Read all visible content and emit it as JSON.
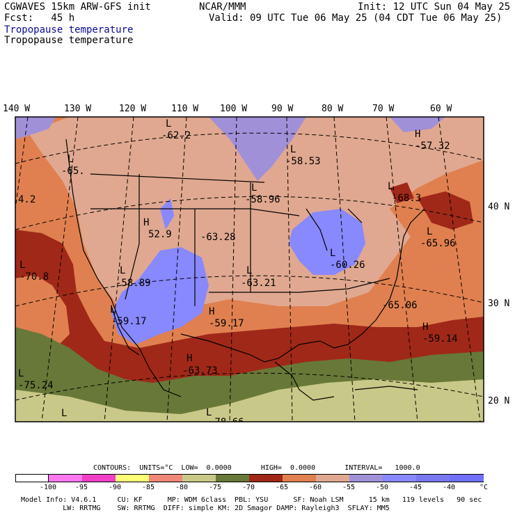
{
  "header": {
    "line1_left": "CGWAVES 15km ARW-GFS init",
    "line1_center": "NCAR/MMM",
    "line1_right": "Init: 12 UTC Sun 04 May 25",
    "line2_left": "Fcst:   45 h",
    "line2_right": "Valid: 09 UTC Tue 06 May 25 (04 CDT Tue 06 May 25)",
    "field_title_1": "Tropopause temperature",
    "field_title_2": "Tropopause temperature"
  },
  "map": {
    "longitude_labels": [
      "140 W",
      "130 W",
      "120 W",
      "110 W",
      "100 W",
      "90 W",
      "80 W",
      "70 W",
      "60 W"
    ],
    "latitude_labels": [
      "40 N",
      "30 N",
      "20 N"
    ],
    "extrema_labels": [
      {
        "type": "L",
        "value": "-62.2"
      },
      {
        "type": "L",
        "value": "-65."
      },
      {
        "type": "L",
        "value": "-58.53"
      },
      {
        "type": "H",
        "value": "-57.32"
      },
      {
        "type": "L",
        "value": "-58.96"
      },
      {
        "type": "L",
        "value": "-68.3"
      },
      {
        "type": "H",
        "value": "52.9"
      },
      {
        "type": "",
        "value": "-63.28"
      },
      {
        "type": "",
        "value": "4.2"
      },
      {
        "type": "L",
        "value": "-65.96"
      },
      {
        "type": "L",
        "value": "-70.8"
      },
      {
        "type": "L",
        "value": "-58.89"
      },
      {
        "type": "L",
        "value": "-63.21"
      },
      {
        "type": "L",
        "value": "-60.26"
      },
      {
        "type": "L",
        "value": "-59.17"
      },
      {
        "type": "H",
        "value": "-59.17"
      },
      {
        "type": "",
        "value": "-65.06"
      },
      {
        "type": "H",
        "value": "-59.14"
      },
      {
        "type": "H",
        "value": "-63.73"
      },
      {
        "type": "L",
        "value": "-75.24"
      },
      {
        "type": "L",
        "value": ""
      },
      {
        "type": "L",
        "value": "-78.66"
      }
    ],
    "colors": {
      "le_-100": "#ffffff",
      "-100_-95": "#ff78f0",
      "-95_-90": "#f040c8",
      "-90_-85": "#ffff78",
      "-85_-80": "#f08878",
      "-80_-75": "#c8c888",
      "-75_-70": "#687838",
      "-70_-65": "#a02818",
      "-65_-60": "#e08050",
      "-60_-55": "#e0a890",
      "-55_-50": "#a090d8",
      "-50_-45": "#8888ff",
      "-45_-40": "#8080ff",
      "-40_up": "#7878f0"
    }
  },
  "footer": {
    "contours": "CONTOURS:  UNITS=°C  LOW=  0.0000       HIGH=  0.0000       INTERVAL=   1000.0",
    "colorbar_ticks": [
      "-100",
      "-95",
      "-90",
      "-85",
      "-80",
      "-75",
      "-70",
      "-65",
      "-60",
      "-55",
      "-50",
      "-45",
      "-40",
      "°C"
    ],
    "colorbar_colors": [
      "#ffffff",
      "#ff78f0",
      "#f040c8",
      "#ffff78",
      "#f08878",
      "#c8c888",
      "#687838",
      "#a02818",
      "#e08050",
      "#e0a890",
      "#a090d8",
      "#8888ff",
      "#7878f0",
      "#7070f8"
    ],
    "model_info_1": "Model Info: V4.6.1     CU: KF      MP: WDM 6class  PBL: YSU      SF: Noah LSM      15 km   119 levels   90 sec",
    "model_info_2": "          LW: RRTMG    SW: RRTMG  DIFF: simple KM: 2D Smagor DAMP: Rayleigh3  SFLAY: MM5"
  }
}
